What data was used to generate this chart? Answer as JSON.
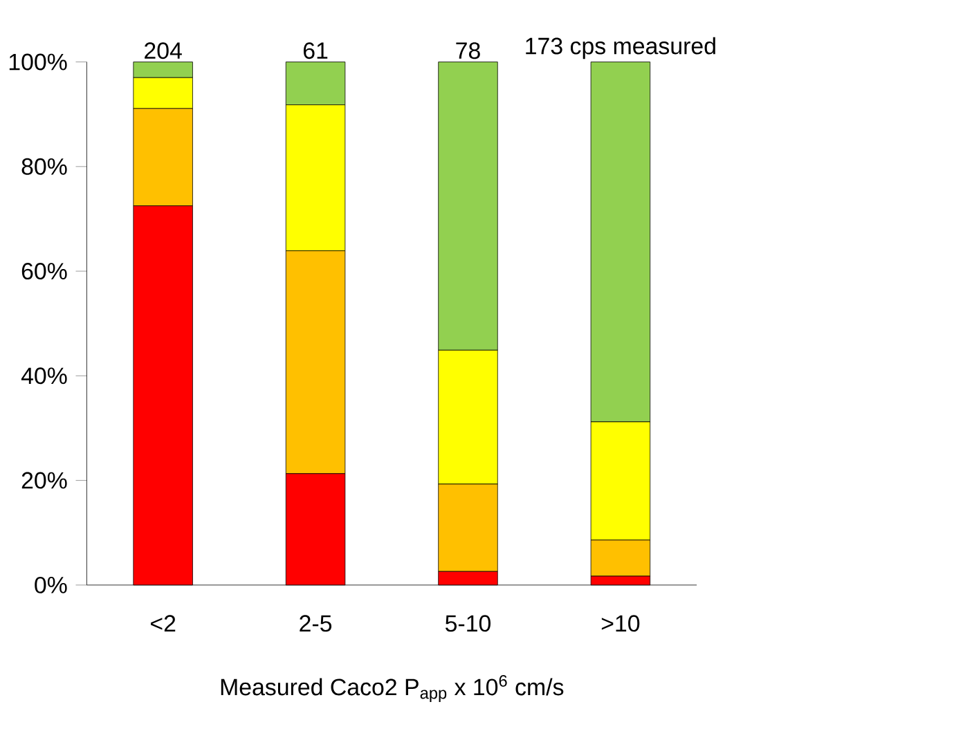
{
  "chart_data": {
    "type": "bar",
    "stacked": true,
    "xlabel": "Measured Caco2 P$_{app}$ x 10$^{6}$ cm/s",
    "categories": [
      "<2",
      "2-5",
      "5-10",
      ">10"
    ],
    "series": [
      {
        "color": "#ff0000",
        "values": [
          72.5,
          21.3,
          2.6,
          1.7
        ]
      },
      {
        "color": "#ffc000",
        "values": [
          18.6,
          42.6,
          16.7,
          6.9
        ]
      },
      {
        "color": "#ffff00",
        "values": [
          5.9,
          27.9,
          25.6,
          22.6
        ]
      },
      {
        "color": "#92d050",
        "values": [
          3.0,
          8.2,
          55.1,
          68.8
        ]
      }
    ],
    "ylim": [
      0,
      100
    ],
    "yticks": [
      {
        "value": 0,
        "label": "0%"
      },
      {
        "value": 20,
        "label": "20%"
      },
      {
        "value": 40,
        "label": "40%"
      },
      {
        "value": 60,
        "label": "60%"
      },
      {
        "value": 80,
        "label": "80%"
      },
      {
        "value": 100,
        "label": "100%"
      }
    ],
    "annotations": [
      "204",
      "61",
      "78",
      "173 cps measured"
    ],
    "grid": false
  }
}
